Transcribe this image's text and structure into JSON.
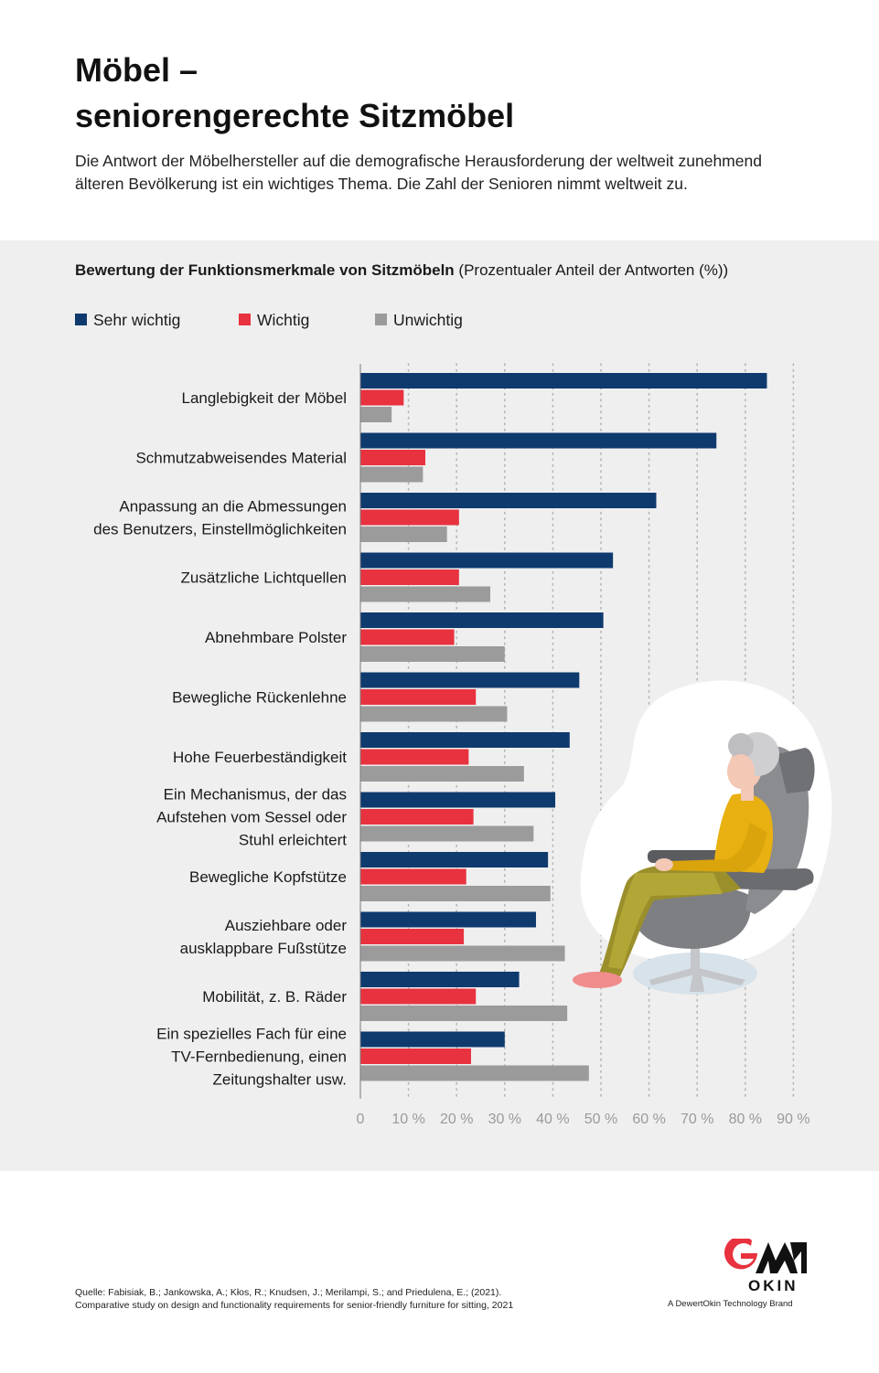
{
  "title_line1": "Möbel –",
  "title_line2": "seniorengerechte Sitzmöbel",
  "intro": "Die Antwort der Möbelhersteller auf die demografische Herausforderung der weltweit zunehmend älteren Bevölkerung ist ein wichtiges Thema. Die Zahl der Senioren nimmt weltweit zu.",
  "chart_heading_bold": "Bewertung der Funktionsmerkmale von Sitzmöbeln",
  "chart_heading_rest": " (Prozentualer Anteil der Antworten (%))",
  "colors": {
    "sehr_wichtig": "#0f3a6e",
    "wichtig": "#e8323f",
    "unwichtig": "#9b9b9b",
    "panel": "#efefef"
  },
  "chart_data": {
    "type": "bar",
    "orientation": "horizontal",
    "categories": [
      [
        "Langlebigkeit der Möbel"
      ],
      [
        "Schmutzabweisendes Material"
      ],
      [
        "Anpassung an die Abmessungen",
        "des Benutzers, Einstellmöglichkeiten"
      ],
      [
        "Zusätzliche Lichtquellen"
      ],
      [
        "Abnehmbare Polster"
      ],
      [
        "Bewegliche Rückenlehne"
      ],
      [
        "Hohe Feuerbeständigkeit"
      ],
      [
        "Ein Mechanismus, der das",
        "Aufstehen vom Sessel oder",
        "Stuhl erleichtert"
      ],
      [
        "Bewegliche Kopfstütze"
      ],
      [
        "Ausziehbare oder",
        "ausklappbare Fußstütze"
      ],
      [
        "Mobilität, z. B. Räder"
      ],
      [
        "Ein spezielles Fach für eine",
        "TV-Fernbedienung, einen",
        "Zeitungshalter usw."
      ]
    ],
    "series": [
      {
        "name": "Sehr wichtig",
        "color": "#0f3a6e",
        "values": [
          84.5,
          74,
          61.5,
          52.5,
          50.5,
          45.5,
          43.5,
          40.5,
          39,
          36.5,
          33,
          30
        ]
      },
      {
        "name": "Wichtig",
        "color": "#e8323f",
        "values": [
          9,
          13.5,
          20.5,
          20.5,
          19.5,
          24,
          22.5,
          23.5,
          22,
          21.5,
          24,
          23
        ]
      },
      {
        "name": "Unwichtig",
        "color": "#9b9b9b",
        "values": [
          6.5,
          13,
          18,
          27,
          30,
          30.5,
          34,
          36,
          39.5,
          42.5,
          43,
          47.5
        ]
      }
    ],
    "xlim": [
      0,
      90
    ],
    "xticks": [
      "0",
      "10 %",
      "20 %",
      "30 %",
      "40 %",
      "50 %",
      "60 %",
      "70 %",
      "80 %",
      "90 %"
    ],
    "grid": "vertical dotted",
    "legend_position": "top-left"
  },
  "source_line1": "Quelle: Fabisiak, B.; Jankowska, A.; Kłos, R.; Knudsen, J.; Merilampi, S.; and Priedulena, E.; (2021).",
  "source_line2": "Comparative study on design and functionality requirements for senior-friendly furniture for sitting, 2021",
  "logo_word": "OKIN",
  "logo_tagline": "A DewertOkin Technology Brand"
}
